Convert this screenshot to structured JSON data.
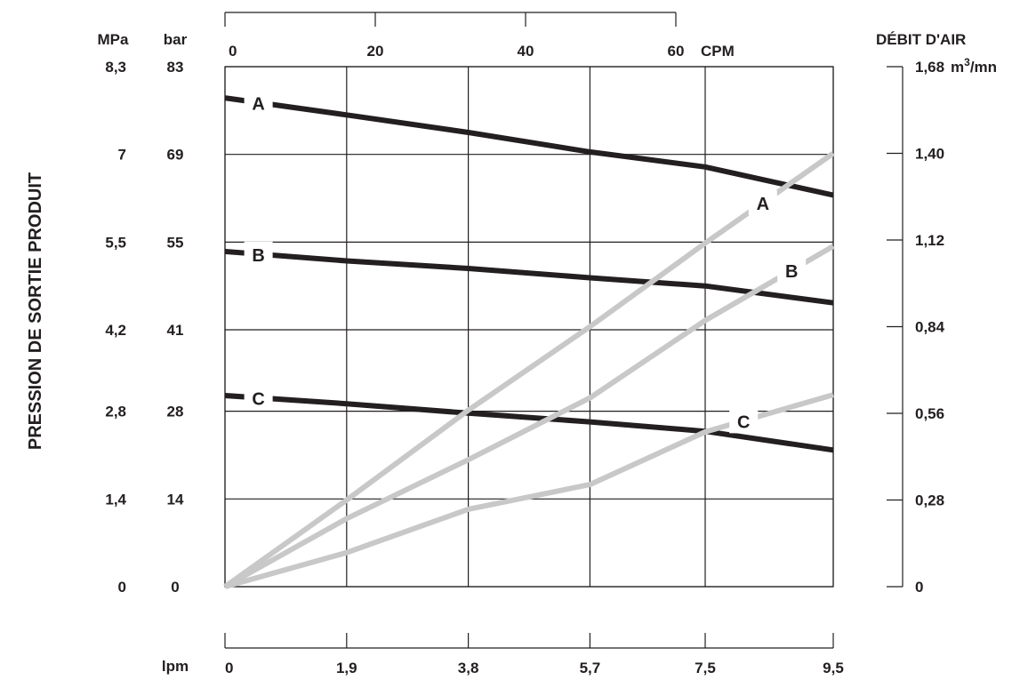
{
  "chart_data": {
    "type": "line",
    "title": "",
    "ylabel": "PRESSION DE SORTIE PRODUIT",
    "y_unit_mpa": "MPa",
    "y_unit_bar": "bar",
    "y_ticks_mpa": [
      "8,3",
      "7",
      "5,5",
      "4,2",
      "2,8",
      "1,4",
      "0"
    ],
    "y_ticks_bar": [
      "83",
      "69",
      "55",
      "41",
      "28",
      "14",
      "0"
    ],
    "ylim_bar": [
      0,
      83
    ],
    "xlabel": "lpm",
    "x_ticks": [
      "0",
      "1,9",
      "3,8",
      "5,7",
      "7,5",
      "9,5"
    ],
    "xlim": [
      0,
      9.5
    ],
    "top_axis_label": "CPM",
    "top_ticks": [
      "0",
      "20",
      "40",
      "60"
    ],
    "y2label": "DÉBIT D'AIR",
    "y2_unit": "m³/mn",
    "y2_ticks": [
      "1,68",
      "1,40",
      "1,12",
      "0,84",
      "0,56",
      "0,28",
      "0"
    ],
    "y2lim": [
      0,
      1.68
    ],
    "grid": true,
    "series": [
      {
        "name": "A",
        "kind": "pressure",
        "color": "#231f20",
        "axis": "bar",
        "x": [
          0,
          1.9,
          3.8,
          5.7,
          7.5,
          9.5
        ],
        "y": [
          78,
          75.3,
          72.5,
          69.4,
          67,
          62.5
        ]
      },
      {
        "name": "B",
        "kind": "pressure",
        "color": "#231f20",
        "axis": "bar",
        "x": [
          0,
          1.9,
          3.8,
          5.7,
          7.5,
          9.5
        ],
        "y": [
          53.5,
          52,
          50.8,
          49.3,
          48,
          45.3
        ]
      },
      {
        "name": "C",
        "kind": "pressure",
        "color": "#231f20",
        "axis": "bar",
        "x": [
          0,
          1.9,
          3.8,
          5.7,
          7.5,
          9.5
        ],
        "y": [
          30.5,
          29.2,
          27.7,
          26.3,
          24.8,
          21.8
        ]
      },
      {
        "name": "A",
        "kind": "air",
        "color": "#c8c8c8",
        "axis": "m3",
        "x": [
          0,
          1.9,
          3.8,
          5.7,
          7.5,
          9.5
        ],
        "y": [
          0,
          0.28,
          0.57,
          0.84,
          1.11,
          1.4
        ]
      },
      {
        "name": "B",
        "kind": "air",
        "color": "#c8c8c8",
        "axis": "m3",
        "x": [
          0,
          1.9,
          3.8,
          5.7,
          7.5,
          9.5
        ],
        "y": [
          0,
          0.22,
          0.41,
          0.61,
          0.86,
          1.1
        ]
      },
      {
        "name": "C",
        "kind": "air",
        "color": "#c8c8c8",
        "axis": "m3",
        "x": [
          0,
          1.9,
          3.8,
          5.7,
          7.5,
          9.5
        ],
        "y": [
          0,
          0.11,
          0.25,
          0.33,
          0.5,
          0.62
        ]
      }
    ]
  }
}
